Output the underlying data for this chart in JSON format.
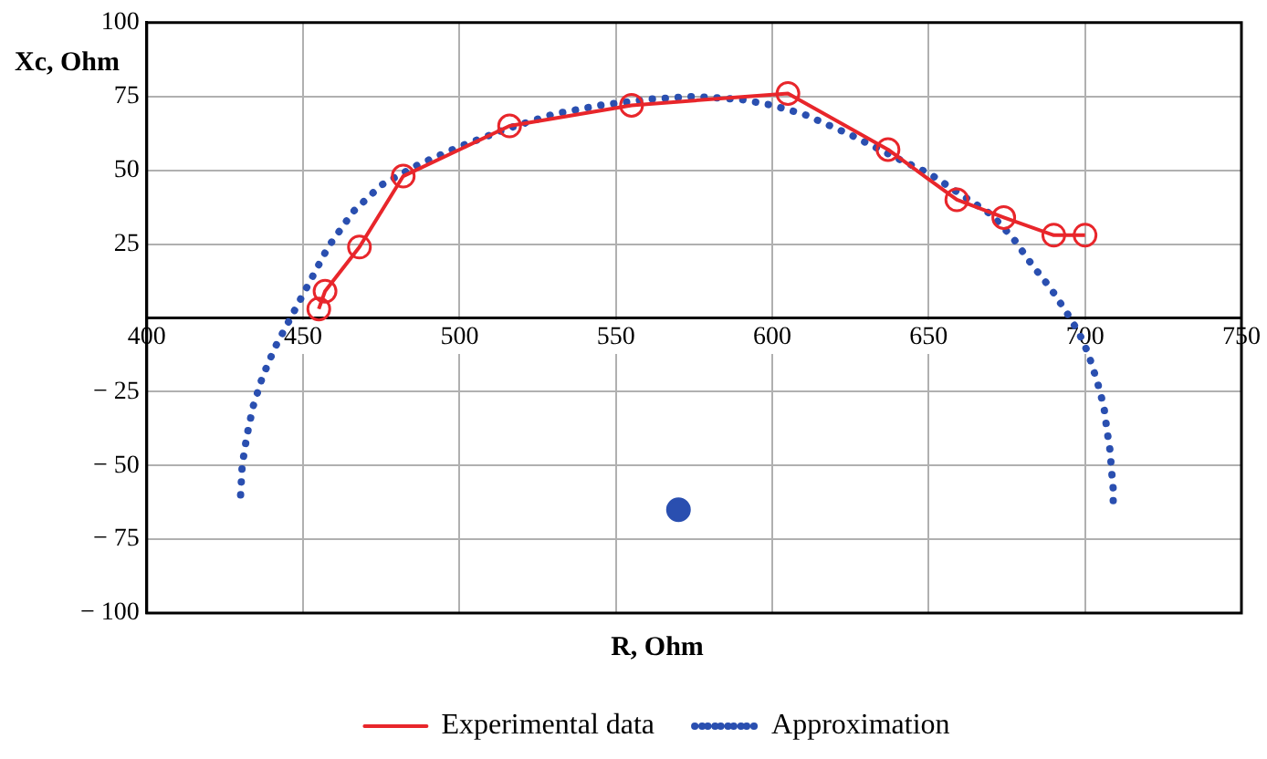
{
  "chart_data": {
    "type": "line",
    "xlabel": "R, Ohm",
    "ylabel": "Xc, Ohm",
    "xlim": [
      400,
      750
    ],
    "xticks": [
      400,
      450,
      500,
      550,
      600,
      650,
      700,
      750
    ],
    "ylim": [
      -100,
      100
    ],
    "yticks": [
      -100,
      -75,
      -50,
      -25,
      25,
      50,
      75,
      100
    ],
    "grid": true,
    "legend": "bottom",
    "series": [
      {
        "name": "Experimental data",
        "type": "line",
        "color": "#e8262b",
        "marker": "circle",
        "line_style": "solid",
        "x": [
          455,
          457,
          468,
          482,
          516,
          555,
          605,
          637,
          659,
          674,
          690,
          700
        ],
        "values": [
          3,
          9,
          24,
          48,
          65,
          72,
          76,
          57,
          40,
          34,
          28,
          28
        ]
      },
      {
        "name": "Approximation",
        "type": "line",
        "color": "#2a4fb0",
        "marker": "none",
        "line_style": "dotted",
        "x": [
          430,
          430.5,
          432,
          434,
          437,
          441,
          446,
          452,
          458,
          466,
          475,
          487,
          500,
          515,
          530,
          545,
          560,
          575,
          590,
          600,
          610,
          625,
          640,
          650,
          660,
          670,
          677,
          683,
          689,
          694,
          698,
          701,
          704,
          706,
          707,
          708,
          708.5,
          709,
          709
        ],
        "values": [
          -60,
          -50,
          -40,
          -30,
          -20,
          -10,
          0,
          12,
          24,
          36,
          45,
          52,
          58,
          64,
          69,
          72,
          74,
          75,
          74,
          72,
          69,
          62,
          54,
          49,
          42,
          35,
          27,
          18,
          10,
          2,
          -5,
          -12,
          -22,
          -30,
          -38,
          -45,
          -52,
          -58,
          -65
        ]
      },
      {
        "type": "scatter",
        "color": "#2a4fb0",
        "marker": "circle",
        "x": [
          570
        ],
        "values": [
          -65
        ]
      }
    ]
  }
}
